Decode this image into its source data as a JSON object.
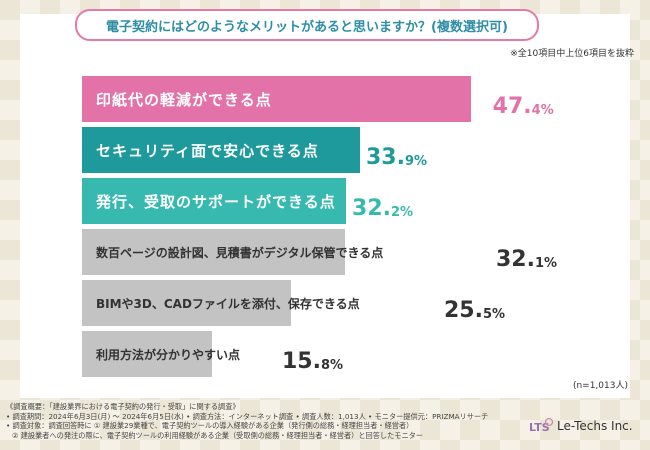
{
  "header": {
    "title": "電子契約にはどのようなメリットがあると思いますか？(複数選択可)",
    "note": "※全10項目中上位6項目を抜粋",
    "sample": "(n=1,013人)"
  },
  "colors": {
    "pink": "#e272a7",
    "teal": "#1e9a9c",
    "light_teal": "#38b9b0",
    "gray": "#c3c3c3"
  },
  "chart_data": {
    "type": "bar",
    "orientation": "horizontal",
    "unit": "%",
    "categories": [
      "印紙代の軽減ができる点",
      "セキュリティ面で安心できる点",
      "発行、受取のサポートができる点",
      "数百ページの設計図、見積書がデジタル保管できる点",
      "BIMや3D、CADファイルを添付、保存できる点",
      "利用方法が分かりやすい点"
    ],
    "values": [
      47.4,
      33.9,
      32.2,
      32.1,
      25.5,
      15.8
    ],
    "labels": [
      {
        "int": "47.",
        "dec": "4%"
      },
      {
        "int": "33.",
        "dec": "9%"
      },
      {
        "int": "32.",
        "dec": "2%"
      },
      {
        "int": "32.",
        "dec": "1%"
      },
      {
        "int": "25.",
        "dec": "5%"
      },
      {
        "int": "15.",
        "dec": "8%"
      }
    ],
    "xlim": [
      0,
      50
    ]
  },
  "footer": {
    "lines": [
      "《調査概要：「建設業界における電子契約の発行・受取」に関する調査》",
      "• 調査期間：2024年6月3日(月) 〜 2024年6月5日(水) • 調査方法：インターネット調査 • 調査人数：1,013人 • モニター提供元：PRIZMAリサーチ",
      "• 調査対象：調査回答時に ① 建設業29業種で、電子契約ツールの導入経験がある企業（発行側の総務・経理担当者・経営者）",
      "② 建設業者への発注の際に、電子契約ツールの利用経験がある企業（受取側の総務・経理担当者・経営者）と回答したモニター"
    ]
  },
  "logo": {
    "text": "Le-Techs Inc.",
    "mark": "LTS"
  }
}
